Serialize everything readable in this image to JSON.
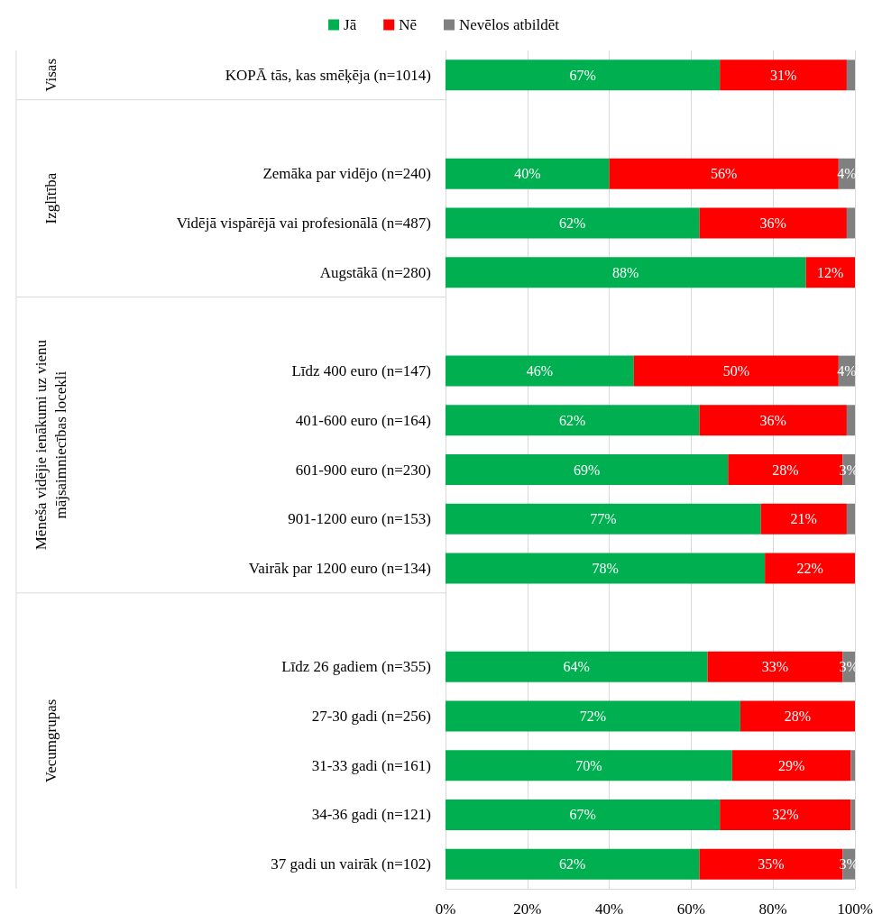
{
  "chart_data": {
    "type": "bar",
    "orientation": "horizontal",
    "stacked": true,
    "categories": [
      "KOPĀ tās, kas smēķēja (n=1014)",
      null,
      "Zemāka par vidējo (n=240)",
      "Vidējā vispārējā vai profesionālā (n=487)",
      "Augstākā (n=280)",
      null,
      "Līdz 400 euro (n=147)",
      "401-600 euro (n=164)",
      "601-900 euro (n=230)",
      "901-1200 euro (n=153)",
      "Vairāk par 1200 euro (n=134)",
      null,
      "Līdz 26 gadiem (n=355)",
      "27-30 gadi (n=256)",
      "31-33 gadi (n=161)",
      "34-36 gadi (n=121)",
      "37 gadi un vairāk (n=102)"
    ],
    "series": [
      {
        "name": "Jā",
        "color": "#00b050",
        "values": [
          67,
          null,
          40,
          62,
          88,
          null,
          46,
          62,
          69,
          77,
          78,
          null,
          64,
          72,
          70,
          67,
          62
        ],
        "value_labels": [
          "67%",
          null,
          "40%",
          "62%",
          "88%",
          null,
          "46%",
          "62%",
          "69%",
          "77%",
          "78%",
          null,
          "64%",
          "72%",
          "70%",
          "67%",
          "62%"
        ]
      },
      {
        "name": "Nē",
        "color": "#ff0000",
        "values": [
          31,
          null,
          56,
          36,
          12,
          null,
          50,
          36,
          28,
          21,
          22,
          null,
          33,
          28,
          29,
          32,
          35
        ],
        "value_labels": [
          "31%",
          null,
          "56%",
          "36%",
          "12%",
          null,
          "50%",
          "36%",
          "28%",
          "21%",
          "22%",
          null,
          "33%",
          "28%",
          "29%",
          "32%",
          "35%"
        ]
      },
      {
        "name": "Nevēlos atbildēt",
        "color": "#808080",
        "values": [
          2,
          null,
          4,
          2,
          0,
          null,
          4,
          2,
          3,
          2,
          0,
          null,
          3,
          0,
          1,
          1,
          3
        ],
        "value_labels": [
          null,
          null,
          "4%",
          null,
          null,
          null,
          "4%",
          null,
          "3%",
          null,
          null,
          null,
          "3%",
          null,
          null,
          null,
          "3%"
        ]
      }
    ],
    "xlim": [
      0,
      100
    ],
    "xticks": [
      {
        "value": 0,
        "label": "0%"
      },
      {
        "value": 20,
        "label": "20%"
      },
      {
        "value": 40,
        "label": "40%"
      },
      {
        "value": 60,
        "label": "60%"
      },
      {
        "value": 80,
        "label": "80%"
      },
      {
        "value": 100,
        "label": "100%"
      }
    ],
    "grid": "x",
    "legend": "top",
    "annotations": [
      "Visas",
      "Izglītība",
      "Mēneša vidējie ienākumi uz vienu\nmājsaimniecības locekli",
      "Vecumgrupas"
    ]
  }
}
